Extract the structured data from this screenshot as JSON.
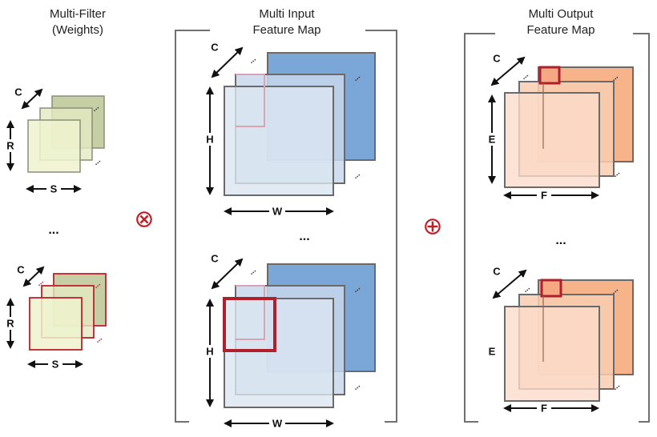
{
  "titles": {
    "filter_line1": "Multi-Filter",
    "filter_line2": "(Weights)",
    "input_line1": "Multi Input",
    "input_line2": "Feature Map",
    "output_line1": "Multi Output",
    "output_line2": "Feature Map"
  },
  "labels": {
    "channels": "C",
    "filter_height": "R",
    "filter_width": "S",
    "input_height": "H",
    "input_width": "W",
    "output_height": "E",
    "output_width": "F",
    "ellipsis": "...",
    "diag_dots": "..."
  },
  "operators": {
    "convolution": "⊗",
    "accumulate": "⊕"
  },
  "colors": {
    "filter_fill": "#eef3cf",
    "filter_back": "#c5cfa3",
    "input_fill": "#dbe5f1",
    "input_back": "#7ba7d8",
    "output_fill": "#fbdccb",
    "output_back": "#f7b48b",
    "highlight": "#c0202a",
    "bracket": "#707070"
  }
}
